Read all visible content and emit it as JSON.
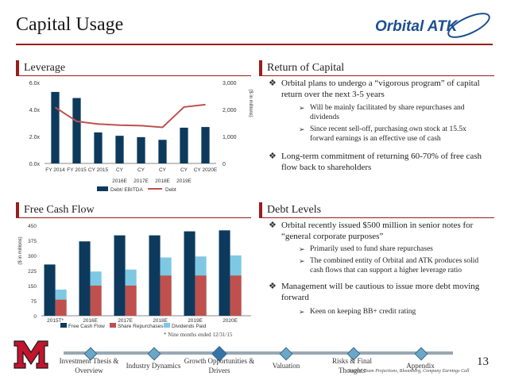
{
  "page": {
    "title": "Capital Usage",
    "page_number": "13",
    "source_note": "Source:  Team Projections, Bloomberg, Company Earnings Call",
    "colors": {
      "accent": "#9b1c1c",
      "navy": "#0d3a5c",
      "salmon": "#c0504d",
      "light_blue": "#7ec8e3"
    }
  },
  "logo": {
    "text": "Orbital ATK"
  },
  "sections": {
    "leverage": "Leverage",
    "return_of_capital": "Return of Capital",
    "free_cash_flow": "Free Cash Flow",
    "debt_levels": "Debt Levels"
  },
  "return_of_capital": {
    "bullets": [
      {
        "text": "Orbital plans to undergo a “vigorous program” of capital return over the next 3-5 years",
        "subs": [
          "Will be mainly facilitated by share repurchases and dividends",
          "Since recent sell-off, purchasing own stock at 15.5x forward earnings is an effective use of cash"
        ]
      },
      {
        "text": "Long-term commitment of returning 60-70% of free cash flow back to shareholders",
        "subs": []
      }
    ]
  },
  "debt_levels": {
    "bullets": [
      {
        "text": "Orbital recently issued $500 million in senior notes for “general corporate purposes”",
        "subs": [
          "Primarily used to fund share repurchases",
          "The combined entity of Orbital and ATK produces solid cash flows that can support a higher leverage ratio"
        ]
      },
      {
        "text": "Management will be cautious to issue more debt moving forward",
        "subs": [
          "Keen on keeping BB+ credit rating"
        ]
      }
    ]
  },
  "fcf_footnote": "* Nine months ended 12/31/15",
  "nav": {
    "items": [
      "Investment Thesis & Overview",
      "Industry Dynamics",
      "Growth Opportunities & Drivers",
      "Valuation",
      "Risks & Final Thoughts",
      "Appendix"
    ],
    "active_index": 2
  },
  "chart_data": [
    {
      "type": "bar",
      "title": "",
      "categories": [
        "FY 2014",
        "FY 2015",
        "CY 2015",
        "CY 2016E",
        "CY 2017E",
        "CY 2018E",
        "CY 2019E",
        "CY 2020E"
      ],
      "series": [
        {
          "name": "Debt/ EBITDA",
          "type": "bar",
          "axis": "left",
          "values": [
            5.3,
            4.85,
            2.3,
            2.05,
            1.95,
            1.75,
            2.65,
            2.7
          ]
        },
        {
          "name": "Debt",
          "type": "line",
          "axis": "right",
          "values": [
            2080,
            1560,
            1460,
            1420,
            1400,
            1340,
            2090,
            2180
          ]
        }
      ],
      "y_left": {
        "ticks": [
          "0.0x",
          "2.0x",
          "4.0x",
          "6.0x"
        ],
        "range": [
          0,
          6
        ]
      },
      "y_right": {
        "label": "($ in millions)",
        "ticks": [
          "0",
          "1,000",
          "2,000",
          "3,000"
        ],
        "range": [
          0,
          3000
        ]
      },
      "legend": "bottom"
    },
    {
      "type": "bar",
      "title": "",
      "categories": [
        "2015T*",
        "2016E",
        "2017E",
        "2018E",
        "2019E",
        "2020E"
      ],
      "series": [
        {
          "name": "Free Cash Flow",
          "values": [
            255,
            370,
            400,
            400,
            420,
            425
          ]
        },
        {
          "name": "Share Repurchases",
          "values": [
            80,
            150,
            150,
            200,
            200,
            200
          ]
        },
        {
          "name": "Dividends Paid",
          "values": [
            130,
            220,
            230,
            290,
            295,
            300
          ]
        }
      ],
      "y": {
        "label": "($ in millions)",
        "ticks": [
          "0",
          "75",
          "150",
          "225",
          "300",
          "375",
          "450"
        ],
        "range": [
          0,
          450
        ]
      },
      "legend": "bottom"
    }
  ]
}
